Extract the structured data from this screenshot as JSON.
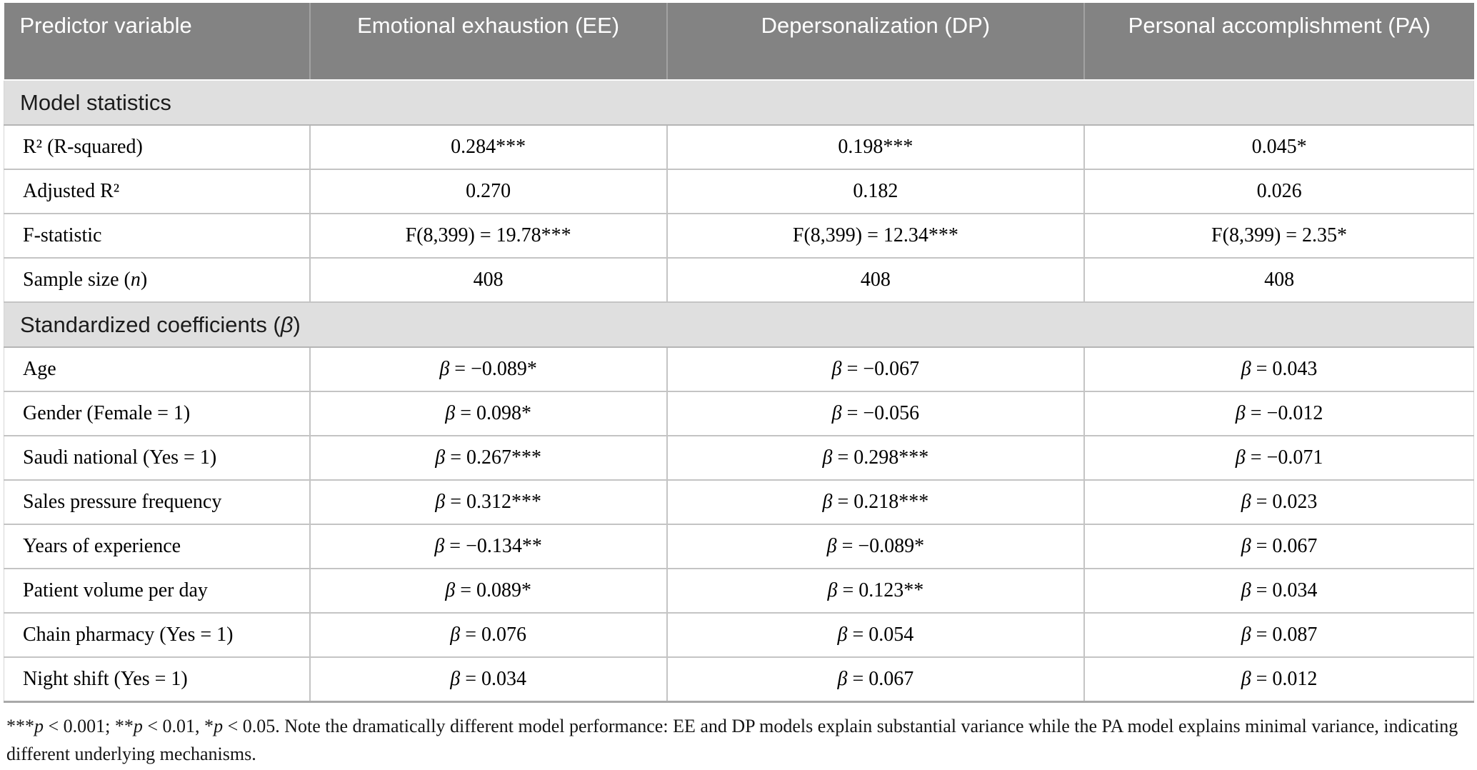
{
  "theme": {
    "header_bg": "#838383",
    "header_text": "#ffffff",
    "section_bg": "#dfdfdf",
    "grid_line": "#c4c4c4",
    "section_border": "#b5b5b5",
    "bottom_border": "#a9a9a9"
  },
  "table": {
    "columns": [
      "Predictor variable",
      "Emotional exhaustion (EE)",
      "Depersonalization (DP)",
      "Personal accomplishment (PA)"
    ],
    "sections": [
      {
        "title": "Model statistics",
        "rows": [
          {
            "label": "R² (R-squared)",
            "values": [
              "0.284***",
              "0.198***",
              "0.045*"
            ]
          },
          {
            "label": "Adjusted R²",
            "values": [
              "0.270",
              "0.182",
              "0.026"
            ]
          },
          {
            "label": "F-statistic",
            "values": [
              "F(8,399) = 19.78***",
              "F(8,399) = 12.34***",
              "F(8,399) = 2.35*"
            ]
          },
          {
            "label": "Sample size (_n_)",
            "values": [
              "408",
              "408",
              "408"
            ]
          }
        ]
      },
      {
        "title": "Standardized coefficients (_β_)",
        "rows": [
          {
            "label": "Age",
            "values": [
              "_β_ = −0.089*",
              "_β_ = −0.067",
              "_β_ = 0.043"
            ]
          },
          {
            "label": "Gender (Female = 1)",
            "values": [
              "_β_ = 0.098*",
              "_β_ = −0.056",
              "_β_ = −0.012"
            ]
          },
          {
            "label": "Saudi national (Yes = 1)",
            "values": [
              "_β_ = 0.267***",
              "_β_ = 0.298***",
              "_β_ = −0.071"
            ]
          },
          {
            "label": "Sales pressure frequency",
            "values": [
              "_β_ = 0.312***",
              "_β_ = 0.218***",
              "_β_ = 0.023"
            ]
          },
          {
            "label": "Years of experience",
            "values": [
              "_β_ = −0.134**",
              "_β_ = −0.089*",
              "_β_ = 0.067"
            ]
          },
          {
            "label": "Patient volume per day",
            "values": [
              "_β_ = 0.089*",
              "_β_ = 0.123**",
              "_β_ = 0.034"
            ]
          },
          {
            "label": "Chain pharmacy (Yes = 1)",
            "values": [
              "_β_ = 0.076",
              "_β_ = 0.054",
              "_β_ = 0.087"
            ]
          },
          {
            "label": "Night shift (Yes = 1)",
            "values": [
              "_β_ = 0.034",
              "_β_ = 0.067",
              "_β_ = 0.012"
            ]
          }
        ]
      }
    ],
    "footnote": "***_p_ < 0.001; **_p_ < 0.01, *_p_ < 0.05. Note the dramatically different model performance: EE and DP models explain substantial variance while the PA model explains minimal variance, indicating different underlying mechanisms."
  }
}
